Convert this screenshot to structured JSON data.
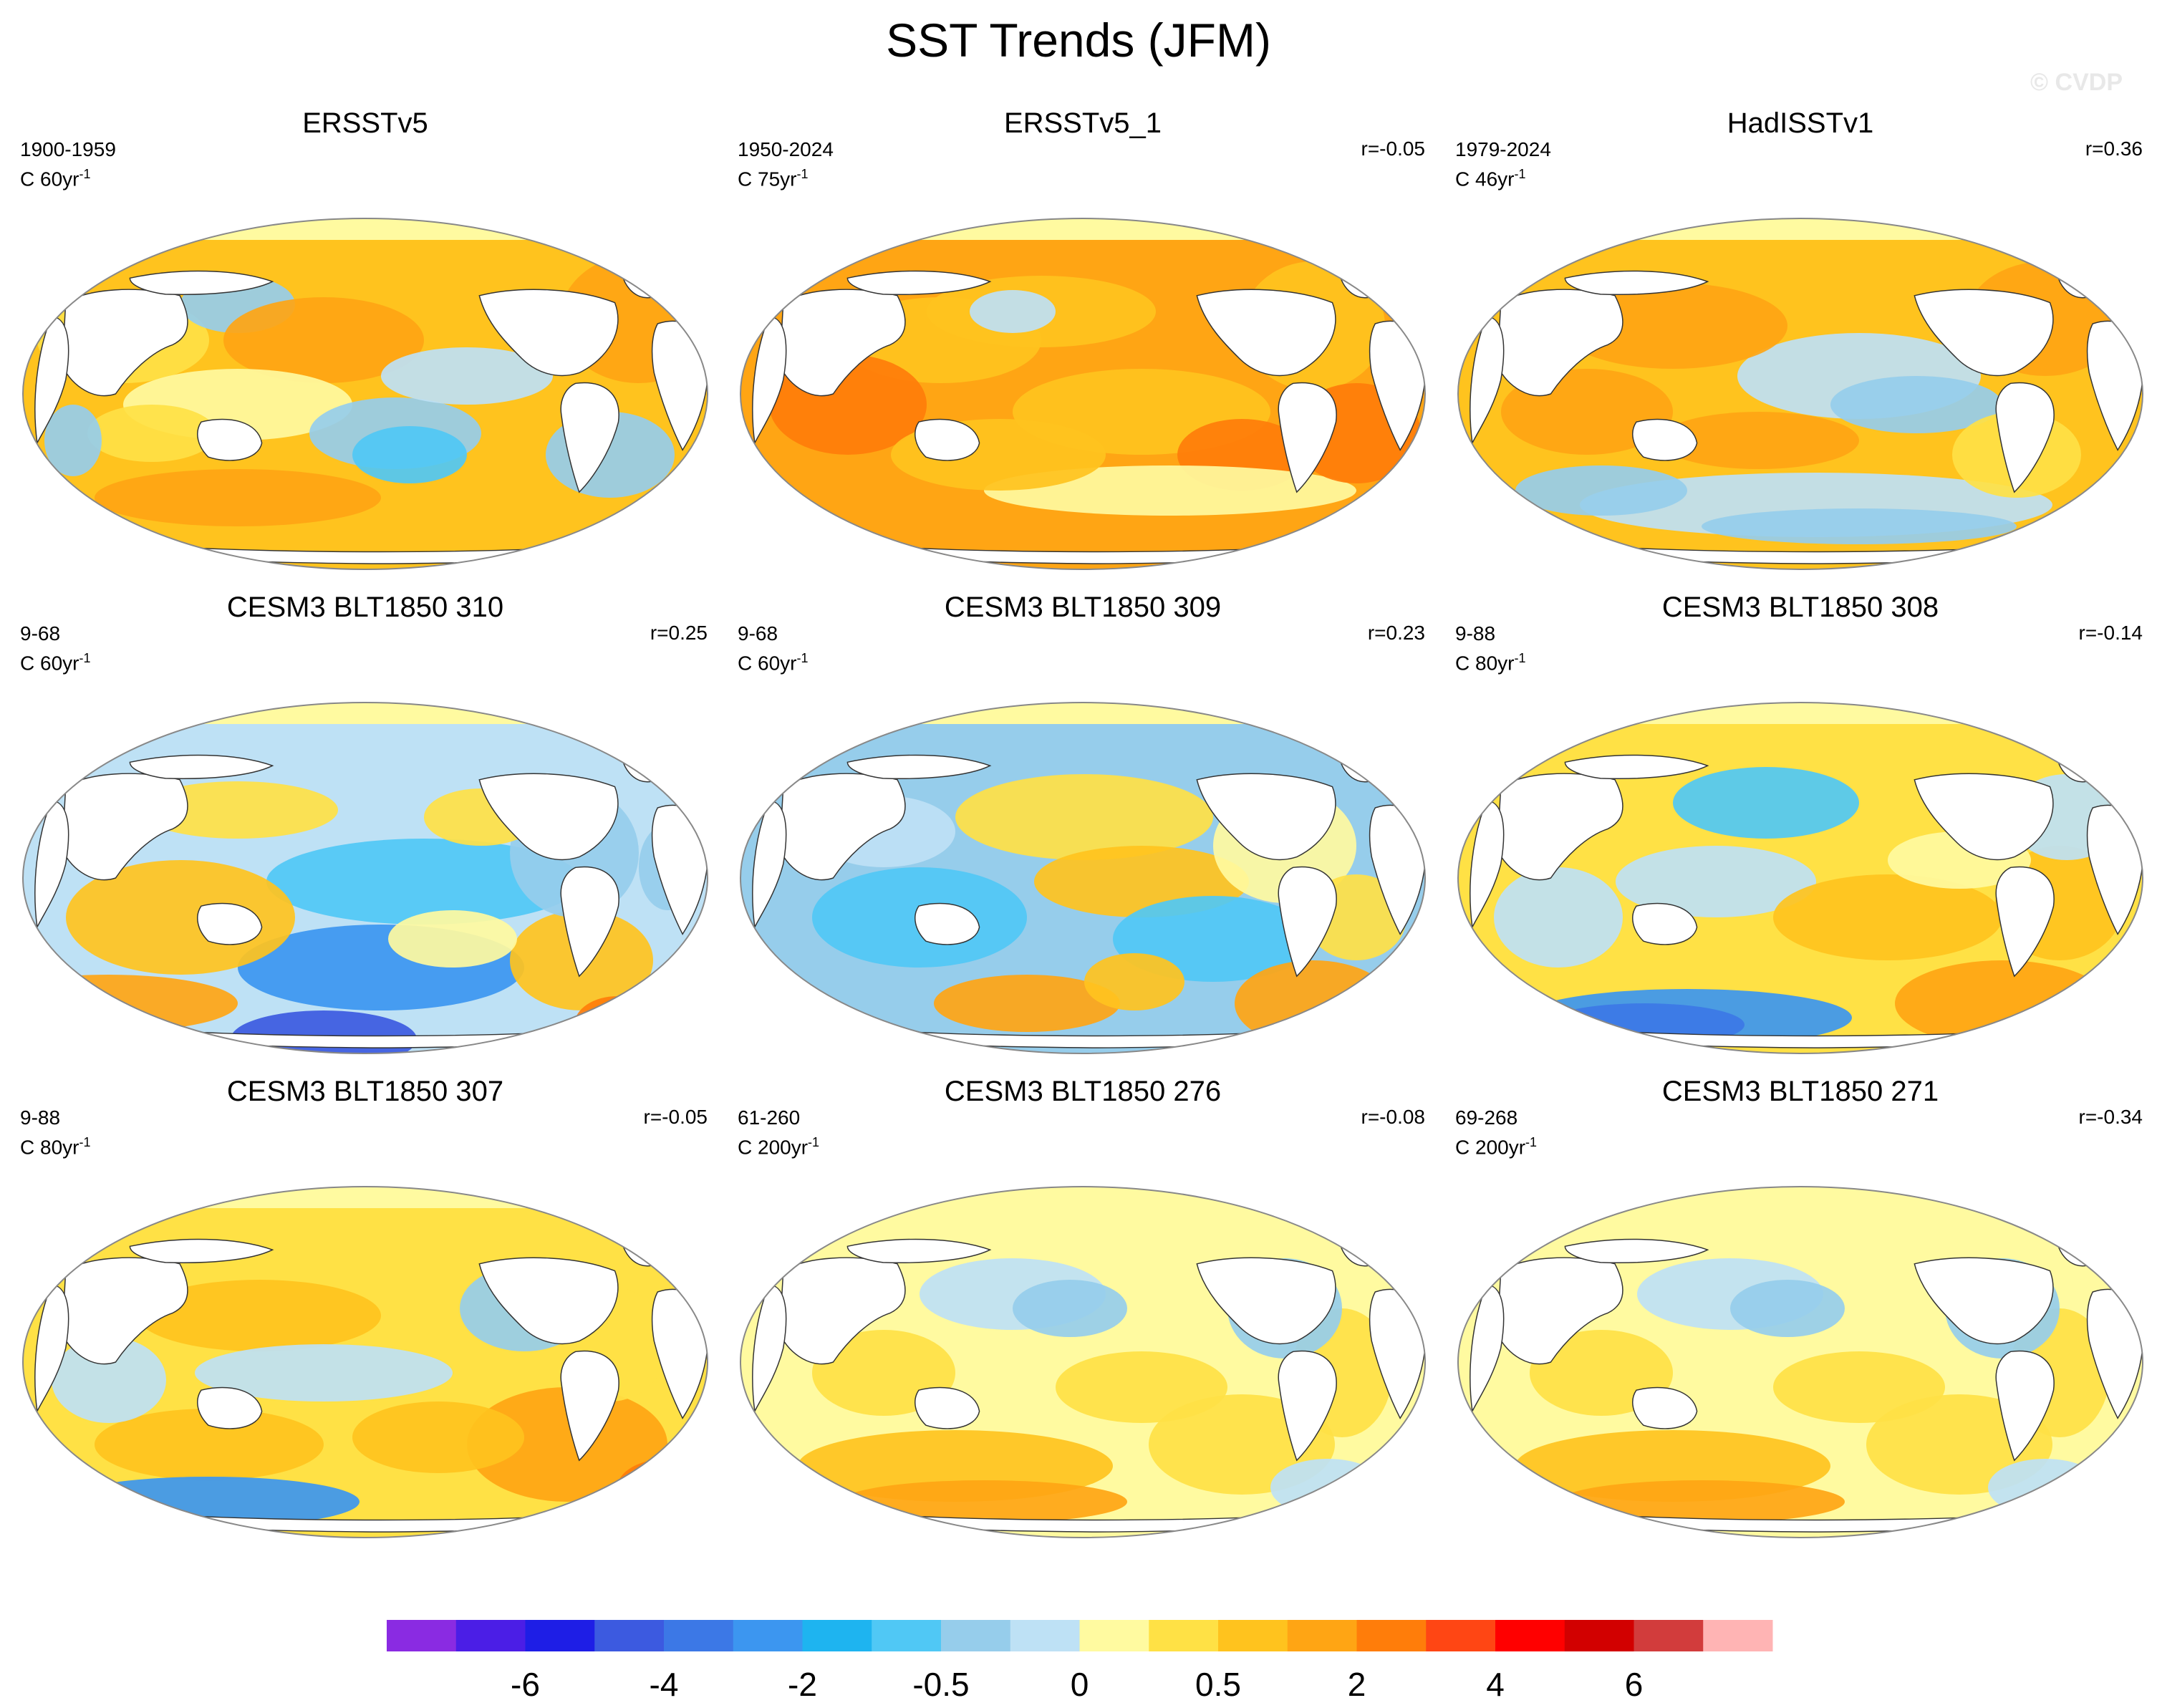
{
  "title": "SST Trends (JFM)",
  "watermark": "© CVDP",
  "chart_data": {
    "type": "map-grid",
    "title": "SST Trends (JFM)",
    "variable": "Sea surface temperature trend",
    "projection": "Robinson (Pacific-centered)",
    "panels": [
      {
        "title": "ERSSTv5",
        "period": "1900-1959",
        "units_base": "C 60yr",
        "units_exp": "-1",
        "corr": "",
        "pattern": "warm-mostly"
      },
      {
        "title": "ERSSTv5_1",
        "period": "1950-2024",
        "units_base": "C 75yr",
        "units_exp": "-1",
        "corr": "r=-0.05",
        "pattern": "warm-strong"
      },
      {
        "title": "HadISSTv1",
        "period": "1979-2024",
        "units_base": "C 46yr",
        "units_exp": "-1",
        "corr": "r=0.36",
        "pattern": "warm-cool-east-pacific"
      },
      {
        "title": "CESM3 BLT1850 310",
        "period": "9-68",
        "units_base": "C 60yr",
        "units_exp": "-1",
        "corr": "r=0.25",
        "pattern": "cool-mostly"
      },
      {
        "title": "CESM3 BLT1850 309",
        "period": "9-68",
        "units_base": "C 60yr",
        "units_exp": "-1",
        "corr": "r=0.23",
        "pattern": "cool-mixed"
      },
      {
        "title": "CESM3 BLT1850 308",
        "period": "9-88",
        "units_base": "C 80yr",
        "units_exp": "-1",
        "corr": "r=-0.14",
        "pattern": "mixed"
      },
      {
        "title": "CESM3 BLT1850 307",
        "period": "9-88",
        "units_base": "C 80yr",
        "units_exp": "-1",
        "corr": "r=-0.05",
        "pattern": "warm-mixed"
      },
      {
        "title": "CESM3 BLT1850 276",
        "period": "61-260",
        "units_base": "C 200yr",
        "units_exp": "-1",
        "corr": "r=-0.08",
        "pattern": "weak-warm"
      },
      {
        "title": "CESM3 BLT1850 271",
        "period": "69-268",
        "units_base": "C 200yr",
        "units_exp": "-1",
        "corr": "r=-0.34",
        "pattern": "weak-warm"
      }
    ],
    "colorbar": {
      "colors": [
        "#8a2be2",
        "#4b1ee6",
        "#1e1ee6",
        "#3c5ae0",
        "#3c78e6",
        "#3c96f0",
        "#1eb4f0",
        "#50c8f5",
        "#96cdeb",
        "#bee1f5",
        "#fffaa0",
        "#ffe145",
        "#ffc31e",
        "#ffa514",
        "#ff7d0a",
        "#ff4614",
        "#ff0000",
        "#d20000",
        "#d23c3c",
        "#ffb4b4"
      ],
      "tick_labels": [
        "-6",
        "-4",
        "-2",
        "-0.5",
        "0",
        "0.5",
        "2",
        "4",
        "6"
      ],
      "tick_boundary_index": [
        2,
        4,
        6,
        8,
        10,
        12,
        14,
        16,
        18
      ]
    }
  }
}
